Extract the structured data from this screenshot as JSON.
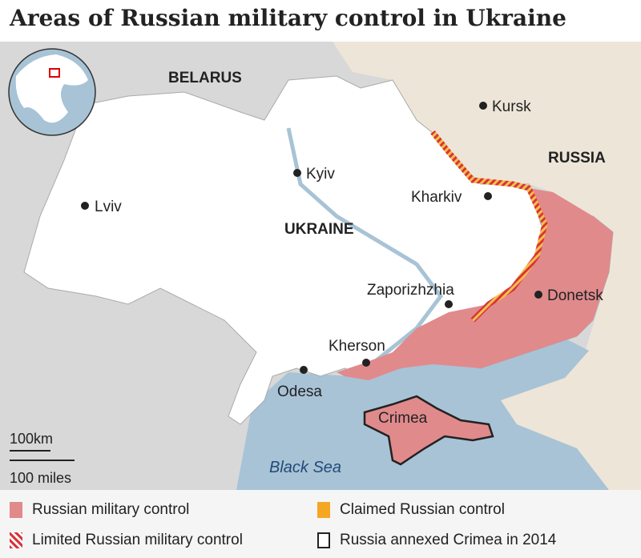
{
  "title": "Areas of Russian military control in Ukraine",
  "countries": {
    "belarus": "BELARUS",
    "russia": "RUSSIA",
    "ukraine": "UKRAINE"
  },
  "cities": [
    {
      "name": "Kursk"
    },
    {
      "name": "Kyiv"
    },
    {
      "name": "Lviv"
    },
    {
      "name": "Kharkiv"
    },
    {
      "name": "Zaporizhzhia"
    },
    {
      "name": "Donetsk"
    },
    {
      "name": "Kherson"
    },
    {
      "name": "Odesa"
    },
    {
      "name": "Crimea"
    }
  ],
  "sea": "Black Sea",
  "scale": {
    "km": "100km",
    "miles": "100 miles"
  },
  "legend": [
    {
      "label": "Russian military control",
      "color": "#e08a8c"
    },
    {
      "label": "Claimed Russian control",
      "color": "#f5a623"
    },
    {
      "label": "Limited Russian military control",
      "color": "#d9343a"
    },
    {
      "label": "Russia annexed Crimea in 2014",
      "color": "#222222"
    }
  ],
  "colors": {
    "land_other": "#d8d8d8",
    "russia": "#ede5d8",
    "ukraine": "#ffffff",
    "sea": "#a8c3d6"
  }
}
